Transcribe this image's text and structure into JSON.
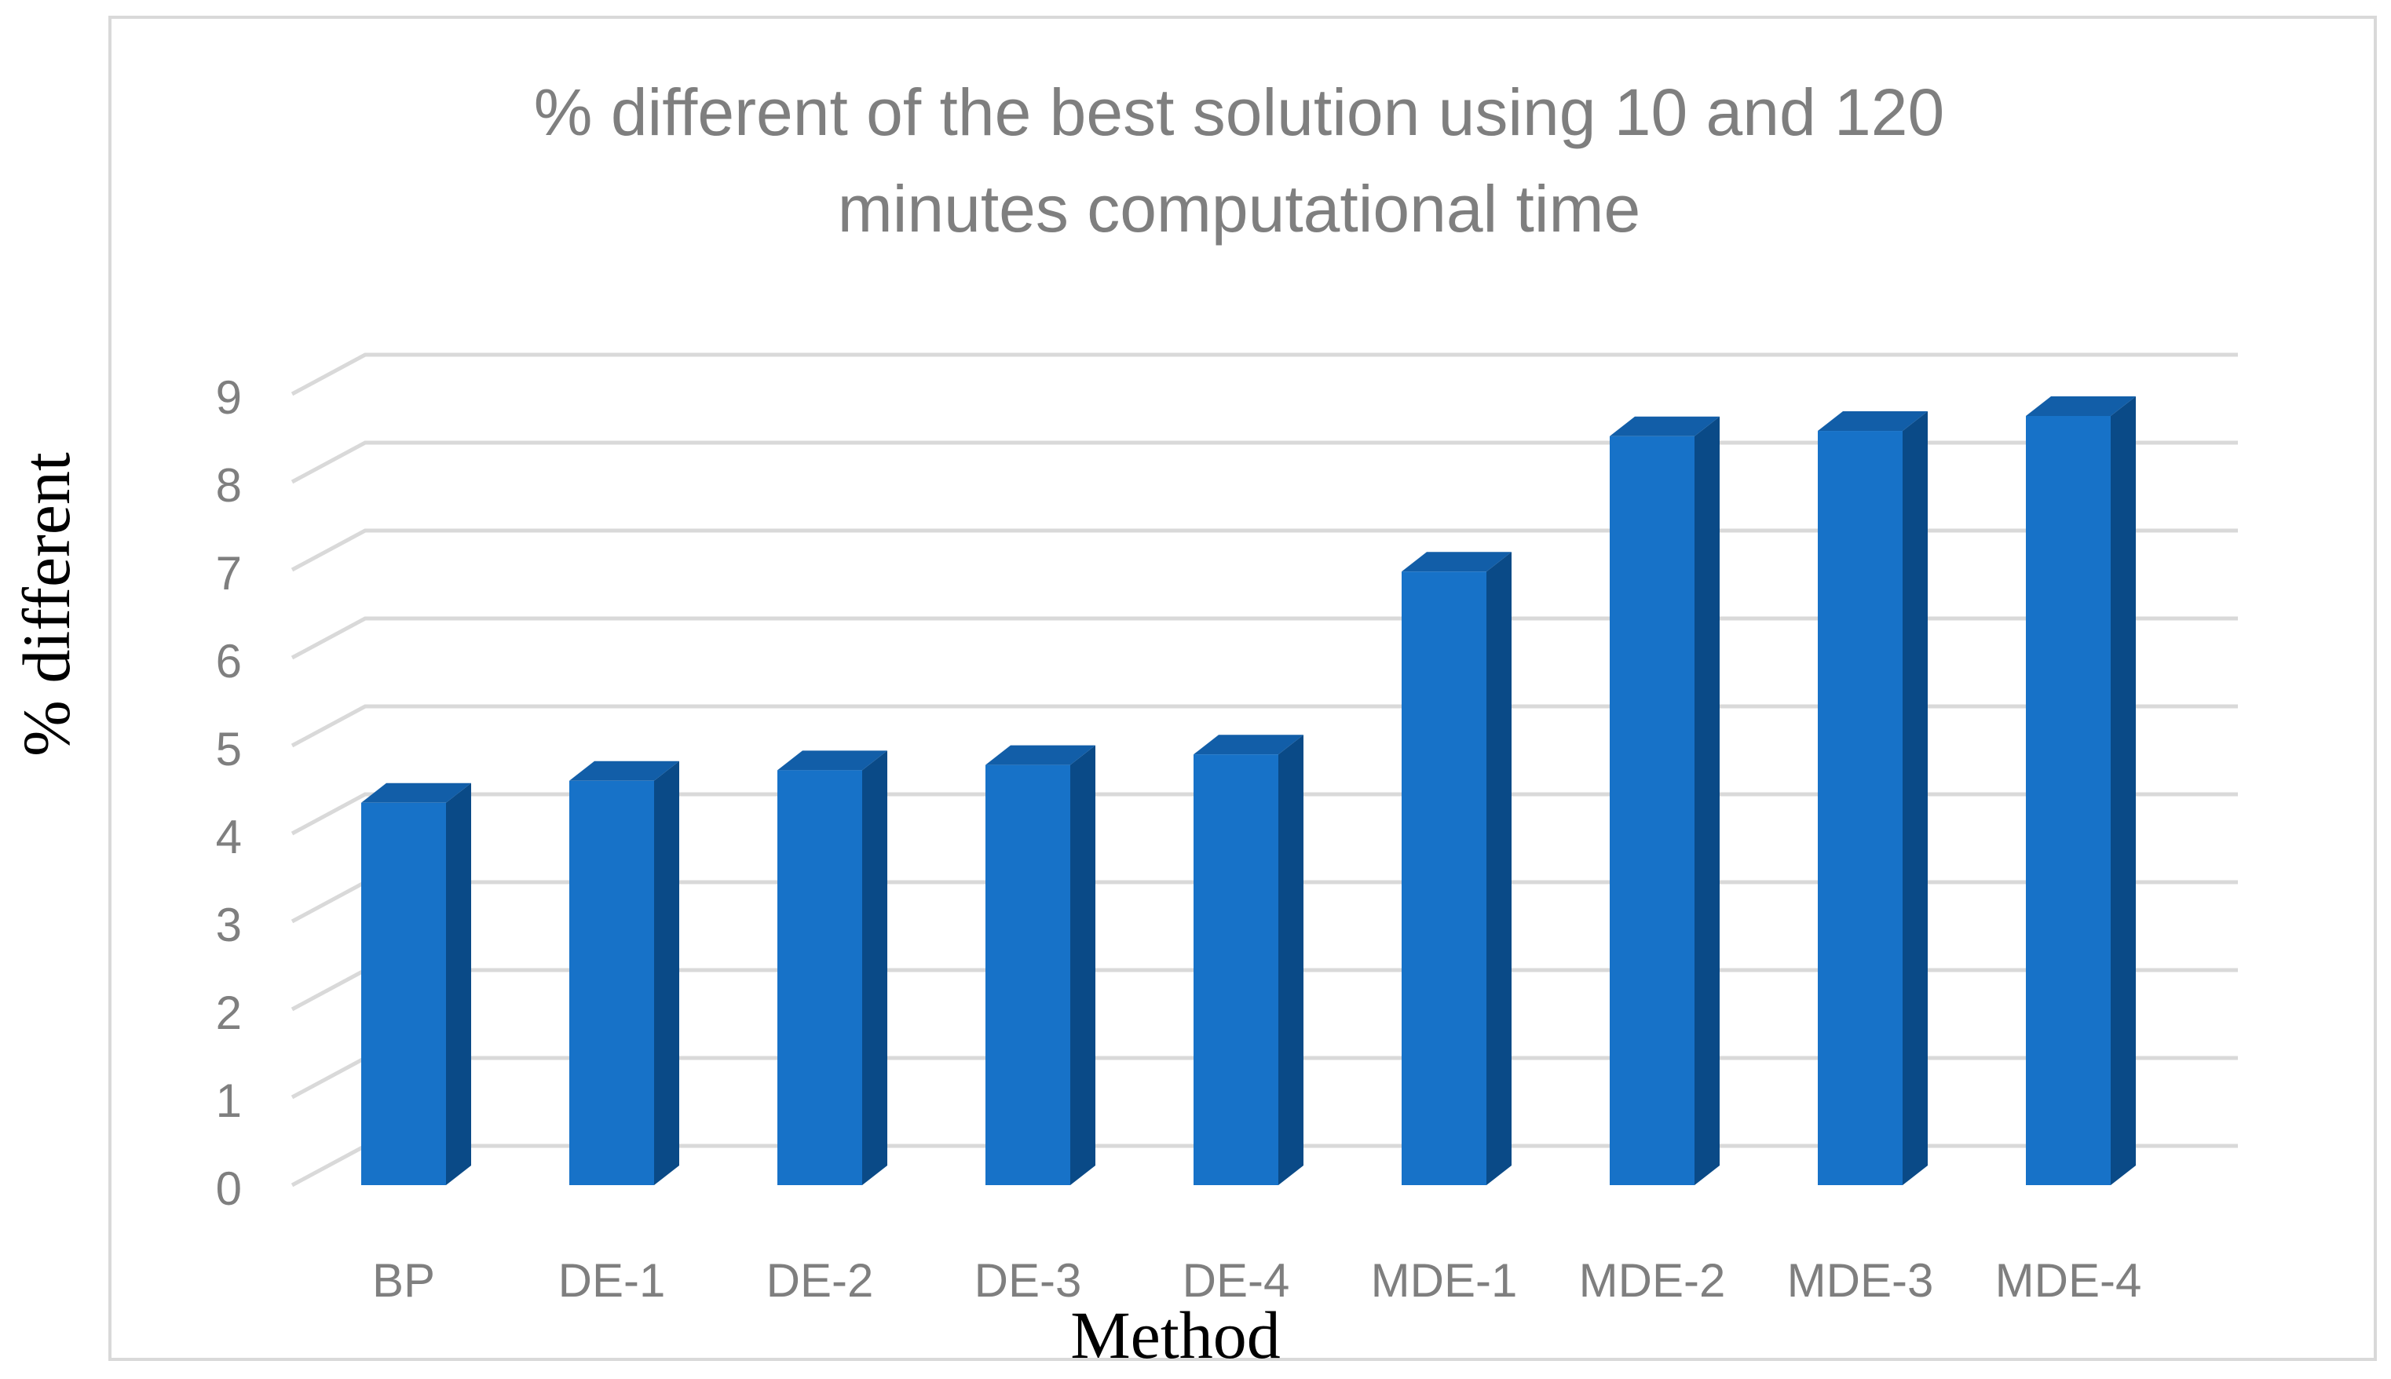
{
  "chart_data": {
    "type": "bar",
    "title_lines": [
      "% different of the best solution using 10 and 120",
      "minutes computational time"
    ],
    "xlabel": "Method",
    "ylabel": "% different",
    "categories": [
      "BP",
      "DE-1",
      "DE-2",
      "DE-3",
      "DE-4",
      "MDE-1",
      "MDE-2",
      "MDE-3",
      "MDE-4"
    ],
    "values": [
      4.35,
      4.6,
      4.72,
      4.78,
      4.9,
      6.98,
      8.52,
      8.58,
      8.75
    ],
    "y_ticks": [
      0,
      1,
      2,
      3,
      4,
      5,
      6,
      7,
      8,
      9
    ],
    "ylim": [
      0,
      9
    ],
    "grid": true,
    "three_d": true,
    "colors": {
      "bar_front": "#1772c8",
      "bar_side": "#0a4a87",
      "bar_top": "#125ea8",
      "grid": "#d9d9d9",
      "border": "#d9d9d9",
      "text": "#7f7f7f"
    }
  }
}
